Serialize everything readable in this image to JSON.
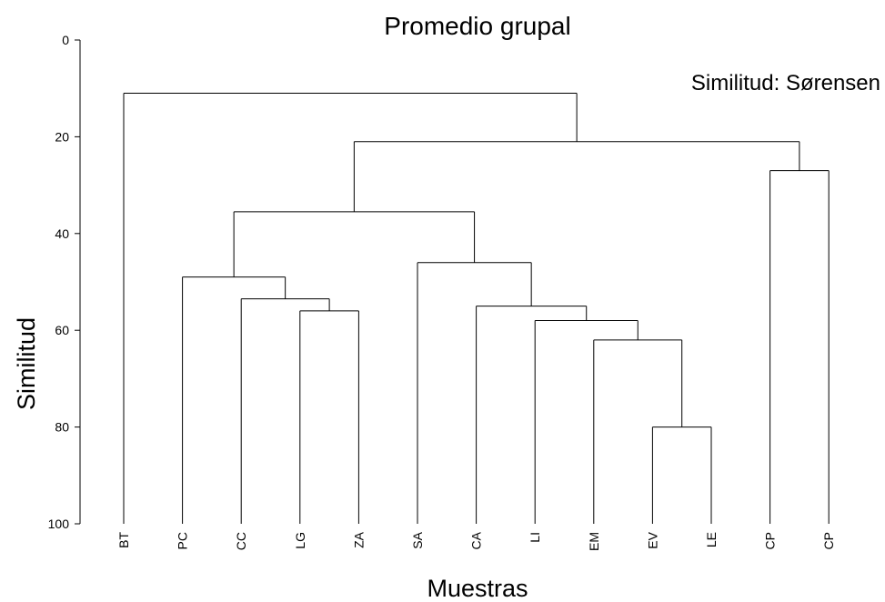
{
  "chart_data": {
    "type": "dendrogram",
    "title": "Promedio grupal",
    "annotation": "Similitud: Sørensen",
    "xlabel": "Muestras",
    "ylabel": "Similitud",
    "ylim": [
      0,
      100
    ],
    "yticks": [
      0,
      20,
      40,
      60,
      80,
      100
    ],
    "leaves": [
      "BT",
      "PC",
      "CC",
      "LG",
      "ZA",
      "SA",
      "CA",
      "LI",
      "EM",
      "EV",
      "LE",
      "CP",
      "CP"
    ],
    "merges": [
      {
        "members": [
          "EV",
          "LE"
        ],
        "similarity": 80
      },
      {
        "members": [
          "EM",
          "EV",
          "LE"
        ],
        "similarity": 62
      },
      {
        "members": [
          "LI",
          "EM",
          "EV",
          "LE"
        ],
        "similarity": 58
      },
      {
        "members": [
          "CA",
          "LI",
          "EM",
          "EV",
          "LE"
        ],
        "similarity": 55
      },
      {
        "members": [
          "SA",
          "CA",
          "LI",
          "EM",
          "EV",
          "LE"
        ],
        "similarity": 46
      },
      {
        "members": [
          "LG",
          "ZA"
        ],
        "similarity": 56
      },
      {
        "members": [
          "CC",
          "LG",
          "ZA"
        ],
        "similarity": 53.5
      },
      {
        "members": [
          "PC",
          "CC",
          "LG",
          "ZA"
        ],
        "similarity": 49
      },
      {
        "members": [
          "PC",
          "CC",
          "LG",
          "ZA",
          "SA",
          "CA",
          "LI",
          "EM",
          "EV",
          "LE"
        ],
        "similarity": 35.5
      },
      {
        "members": [
          "CP",
          "CP"
        ],
        "similarity": 27
      },
      {
        "members": [
          "PC",
          "CC",
          "LG",
          "ZA",
          "SA",
          "CA",
          "LI",
          "EM",
          "EV",
          "LE",
          "CP",
          "CP"
        ],
        "similarity": 21
      },
      {
        "members": [
          "BT",
          "PC",
          "CC",
          "LG",
          "ZA",
          "SA",
          "CA",
          "LI",
          "EM",
          "EV",
          "LE",
          "CP",
          "CP"
        ],
        "similarity": 11
      }
    ]
  }
}
